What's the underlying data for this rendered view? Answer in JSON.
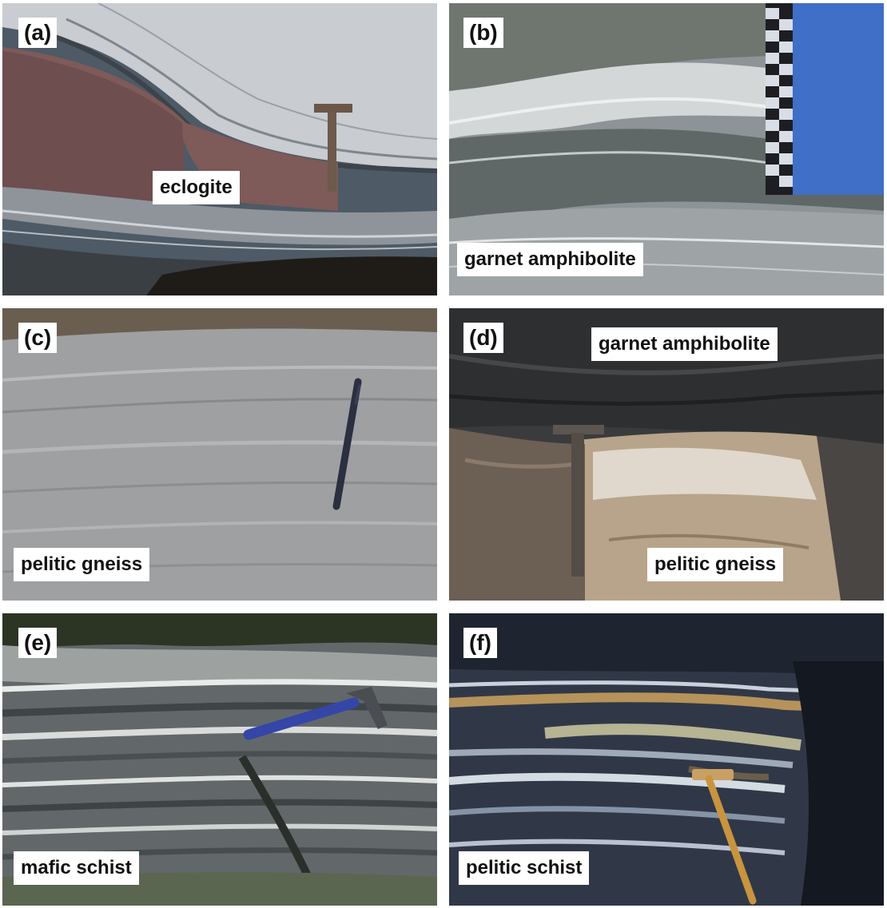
{
  "figure": {
    "panels": [
      {
        "letter": "(a)",
        "labels": [
          "eclogite"
        ]
      },
      {
        "letter": "(b)",
        "labels": [
          "garnet amphibolite"
        ]
      },
      {
        "letter": "(c)",
        "labels": [
          "pelitic gneiss"
        ]
      },
      {
        "letter": "(d)",
        "labels": [
          "garnet amphibolite",
          "pelitic gneiss"
        ]
      },
      {
        "letter": "(e)",
        "labels": [
          "mafic schist"
        ]
      },
      {
        "letter": "(f)",
        "labels": [
          "pelitic schist"
        ]
      }
    ]
  },
  "colors": {
    "label_background": "#ffffff",
    "label_text": "#111111"
  }
}
